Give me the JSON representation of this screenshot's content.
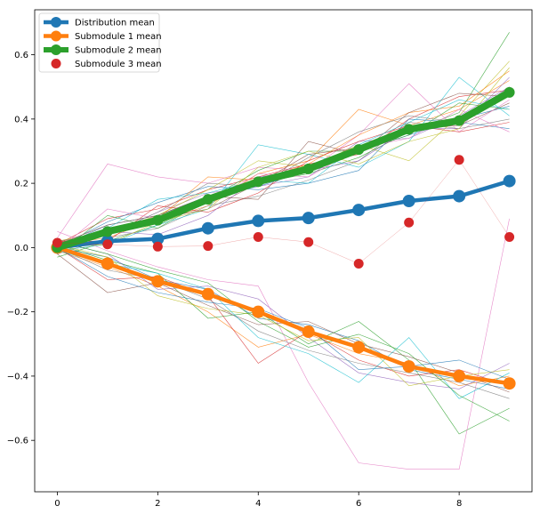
{
  "chart_data": {
    "type": "line",
    "title": "",
    "xlabel": "",
    "ylabel": "",
    "xlim": [
      -0.45,
      9.45
    ],
    "ylim": [
      -0.76,
      0.74
    ],
    "x": [
      0,
      1,
      2,
      3,
      4,
      5,
      6,
      7,
      8,
      9
    ],
    "x_ticks": [
      0,
      2,
      4,
      6,
      8
    ],
    "y_ticks": [
      -0.6,
      -0.4,
      -0.2,
      0.0,
      0.2,
      0.4,
      0.6
    ],
    "x_tick_labels": [
      "0",
      "2",
      "4",
      "6",
      "8"
    ],
    "y_tick_labels": [
      "−0.6",
      "−0.4",
      "−0.2",
      "0.0",
      "0.2",
      "0.4",
      "0.6"
    ],
    "grid": false,
    "legend_position": "top-left",
    "series": [
      {
        "name": "Distribution mean",
        "color": "#1f77b4",
        "style": "line-marker",
        "values": [
          0.0,
          0.02,
          0.027,
          0.06,
          0.083,
          0.092,
          0.117,
          0.145,
          0.16,
          0.207
        ]
      },
      {
        "name": "Submodule 1 mean",
        "color": "#ff7f0e",
        "style": "line-marker",
        "values": [
          0.0,
          -0.05,
          -0.105,
          -0.145,
          -0.2,
          -0.262,
          -0.31,
          -0.37,
          -0.4,
          -0.423
        ]
      },
      {
        "name": "Submodule 2 mean",
        "color": "#2ca02c",
        "style": "thick-line-marker",
        "values": [
          0.0,
          0.05,
          0.085,
          0.15,
          0.205,
          0.245,
          0.305,
          0.368,
          0.395,
          0.483
        ]
      },
      {
        "name": "Submodule 3 mean",
        "color": "#d62728",
        "style": "marker",
        "values": [
          0.015,
          0.01,
          0.003,
          0.005,
          0.033,
          0.017,
          -0.05,
          0.078,
          0.273,
          0.033
        ]
      }
    ],
    "background_traces": [
      {
        "color": "#1f77b4",
        "values": [
          0.0,
          0.07,
          0.1,
          0.16,
          0.19,
          0.24,
          0.3,
          0.35,
          0.4,
          0.44
        ]
      },
      {
        "color": "#ff7f0e",
        "values": [
          0.02,
          0.04,
          0.08,
          0.13,
          0.23,
          0.27,
          0.43,
          0.38,
          0.43,
          0.52
        ]
      },
      {
        "color": "#2ca02c",
        "values": [
          -0.03,
          0.02,
          0.07,
          0.14,
          0.2,
          0.23,
          0.28,
          0.36,
          0.42,
          0.67
        ]
      },
      {
        "color": "#d62728",
        "values": [
          0.01,
          0.09,
          0.12,
          0.18,
          0.22,
          0.26,
          0.29,
          0.4,
          0.47,
          0.49
        ]
      },
      {
        "color": "#9467bd",
        "values": [
          0.0,
          0.04,
          0.11,
          0.17,
          0.19,
          0.22,
          0.33,
          0.34,
          0.41,
          0.5
        ]
      },
      {
        "color": "#8c564b",
        "values": [
          -0.01,
          0.06,
          0.09,
          0.12,
          0.2,
          0.29,
          0.31,
          0.37,
          0.38,
          0.45
        ]
      },
      {
        "color": "#e377c2",
        "values": [
          0.03,
          0.26,
          0.22,
          0.2,
          0.25,
          0.24,
          0.35,
          0.51,
          0.36,
          0.46
        ]
      },
      {
        "color": "#7f7f7f",
        "values": [
          -0.02,
          0.03,
          0.06,
          0.13,
          0.16,
          0.21,
          0.27,
          0.39,
          0.37,
          0.4
        ]
      },
      {
        "color": "#bcbd22",
        "values": [
          0.02,
          0.05,
          0.1,
          0.18,
          0.27,
          0.25,
          0.32,
          0.27,
          0.41,
          0.58
        ]
      },
      {
        "color": "#17becf",
        "values": [
          -0.01,
          0.01,
          0.07,
          0.12,
          0.32,
          0.29,
          0.25,
          0.33,
          0.53,
          0.41
        ]
      },
      {
        "color": "#1f77b4",
        "values": [
          0.0,
          0.08,
          0.14,
          0.19,
          0.18,
          0.2,
          0.24,
          0.4,
          0.39,
          0.37
        ]
      },
      {
        "color": "#ff7f0e",
        "values": [
          0.01,
          0.03,
          0.09,
          0.22,
          0.21,
          0.26,
          0.35,
          0.42,
          0.44,
          0.55
        ]
      },
      {
        "color": "#2ca02c",
        "values": [
          -0.02,
          0.1,
          0.06,
          0.15,
          0.24,
          0.3,
          0.3,
          0.35,
          0.45,
          0.43
        ]
      },
      {
        "color": "#d62728",
        "values": [
          0.02,
          0.02,
          0.13,
          0.11,
          0.17,
          0.27,
          0.33,
          0.38,
          0.36,
          0.39
        ]
      },
      {
        "color": "#9467bd",
        "values": [
          0.0,
          0.05,
          0.04,
          0.1,
          0.22,
          0.24,
          0.27,
          0.37,
          0.37,
          0.53
        ]
      },
      {
        "color": "#8c564b",
        "values": [
          0.01,
          0.07,
          0.1,
          0.16,
          0.15,
          0.33,
          0.29,
          0.42,
          0.48,
          0.47
        ]
      },
      {
        "color": "#e377c2",
        "values": [
          -0.01,
          0.12,
          0.09,
          0.14,
          0.23,
          0.22,
          0.31,
          0.34,
          0.43,
          0.36
        ]
      },
      {
        "color": "#7f7f7f",
        "values": [
          0.02,
          0.04,
          0.11,
          0.2,
          0.19,
          0.28,
          0.36,
          0.41,
          0.39,
          0.5
        ]
      },
      {
        "color": "#bcbd22",
        "values": [
          0.0,
          0.01,
          0.08,
          0.12,
          0.25,
          0.3,
          0.26,
          0.33,
          0.37,
          0.56
        ]
      },
      {
        "color": "#17becf",
        "values": [
          -0.02,
          0.06,
          0.15,
          0.17,
          0.21,
          0.2,
          0.32,
          0.39,
          0.46,
          0.43
        ]
      },
      {
        "color": "#1f77b4",
        "values": [
          0.0,
          -0.03,
          -0.1,
          -0.13,
          -0.22,
          -0.24,
          -0.29,
          -0.38,
          -0.41,
          -0.44
        ]
      },
      {
        "color": "#ff7f0e",
        "values": [
          -0.01,
          -0.06,
          -0.12,
          -0.2,
          -0.31,
          -0.27,
          -0.33,
          -0.36,
          -0.43,
          -0.4
        ]
      },
      {
        "color": "#2ca02c",
        "values": [
          0.01,
          -0.04,
          -0.08,
          -0.22,
          -0.2,
          -0.3,
          -0.23,
          -0.35,
          -0.58,
          -0.5
        ]
      },
      {
        "color": "#d62728",
        "values": [
          0.0,
          -0.1,
          -0.09,
          -0.15,
          -0.36,
          -0.26,
          -0.35,
          -0.4,
          -0.38,
          -0.43
        ]
      },
      {
        "color": "#9467bd",
        "values": [
          0.02,
          -0.02,
          -0.13,
          -0.12,
          -0.16,
          -0.28,
          -0.39,
          -0.42,
          -0.44,
          -0.36
        ]
      },
      {
        "color": "#8c564b",
        "values": [
          -0.02,
          -0.14,
          -0.11,
          -0.18,
          -0.24,
          -0.23,
          -0.3,
          -0.34,
          -0.39,
          -0.45
        ]
      },
      {
        "color": "#e377c2",
        "values": [
          0.05,
          -0.01,
          -0.06,
          -0.1,
          -0.12,
          -0.42,
          -0.67,
          -0.69,
          -0.69,
          0.09
        ]
      },
      {
        "color": "#7f7f7f",
        "values": [
          0.0,
          -0.07,
          -0.1,
          -0.16,
          -0.26,
          -0.32,
          -0.36,
          -0.39,
          -0.42,
          -0.47
        ]
      },
      {
        "color": "#bcbd22",
        "values": [
          0.01,
          -0.03,
          -0.15,
          -0.19,
          -0.21,
          -0.29,
          -0.28,
          -0.43,
          -0.4,
          -0.38
        ]
      },
      {
        "color": "#17becf",
        "values": [
          -0.01,
          -0.05,
          -0.08,
          -0.13,
          -0.28,
          -0.33,
          -0.42,
          -0.28,
          -0.47,
          -0.39
        ]
      },
      {
        "color": "#1f77b4",
        "values": [
          0.0,
          -0.09,
          -0.14,
          -0.17,
          -0.19,
          -0.25,
          -0.38,
          -0.37,
          -0.35,
          -0.41
        ]
      },
      {
        "color": "#2ca02c",
        "values": [
          0.02,
          -0.02,
          -0.07,
          -0.11,
          -0.23,
          -0.31,
          -0.27,
          -0.33,
          -0.46,
          -0.54
        ]
      }
    ]
  }
}
